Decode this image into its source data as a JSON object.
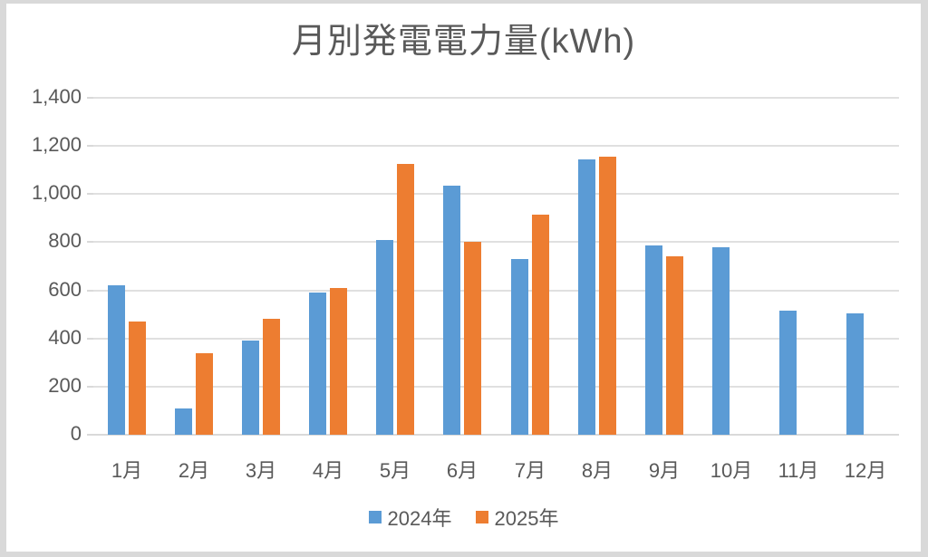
{
  "chart_data": {
    "type": "bar",
    "title": "月別発電電力量(kWh)",
    "categories": [
      "1月",
      "2月",
      "3月",
      "4月",
      "5月",
      "6月",
      "7月",
      "8月",
      "9月",
      "10月",
      "11月",
      "12月"
    ],
    "series": [
      {
        "name": "2024年",
        "color": "#5b9bd5",
        "values": [
          620,
          110,
          390,
          590,
          810,
          1035,
          730,
          1145,
          785,
          780,
          515,
          505
        ]
      },
      {
        "name": "2025年",
        "color": "#ed7d31",
        "values": [
          470,
          340,
          480,
          610,
          1125,
          800,
          915,
          1155,
          740,
          null,
          null,
          null
        ]
      }
    ],
    "xlabel": "",
    "ylabel": "",
    "ylim": [
      0,
      1400
    ],
    "y_ticks": [
      0,
      200,
      400,
      600,
      800,
      1000,
      1200,
      1400
    ],
    "y_tick_labels": [
      "0",
      "200",
      "400",
      "600",
      "800",
      "1,000",
      "1,200",
      "1,400"
    ],
    "grid": true,
    "legend_position": "bottom"
  },
  "style": {
    "text_color": "#595959",
    "gridline_color": "#e0e0e0",
    "axis_line_color": "#d9d9d9",
    "frame_color": "#d9d9d9",
    "background": "#ffffff"
  }
}
